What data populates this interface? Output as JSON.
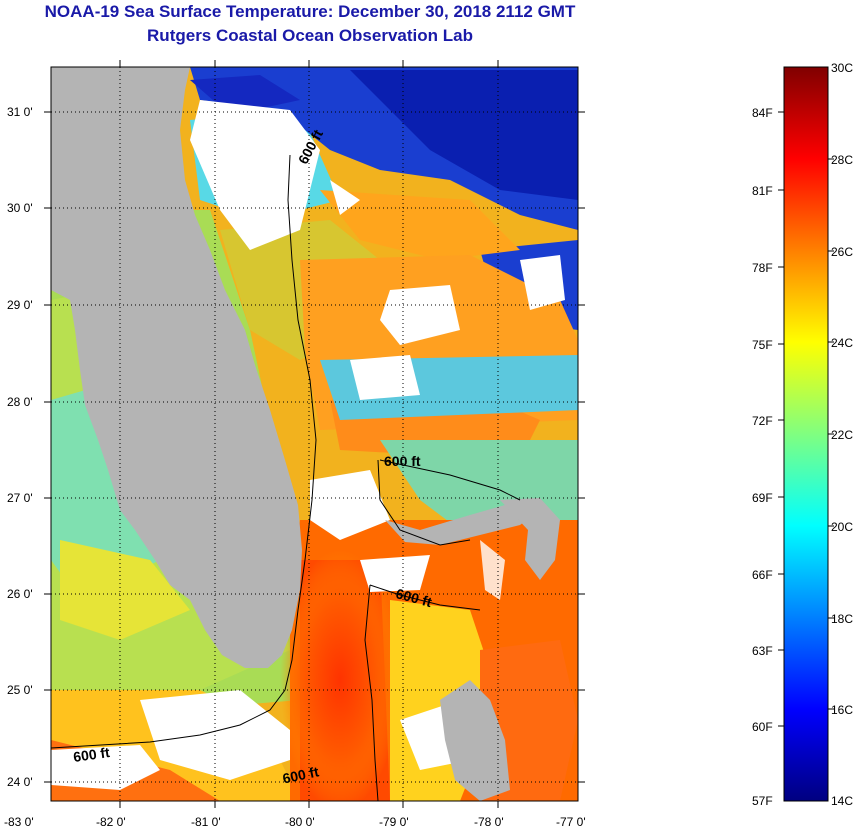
{
  "header": {
    "title": "NOAA-19 Sea Surface Temperature:  December 30, 2018 2112 GMT",
    "subtitle": "Rutgers Coastal Ocean Observation Lab"
  },
  "map": {
    "lat_ticks": [
      "31 0'",
      "30 0'",
      "29 0'",
      "28 0'",
      "27 0'",
      "26 0'",
      "25 0'",
      "24 0'"
    ],
    "lon_ticks": [
      "-83 0'",
      "-82 0'",
      "-81 0'",
      "-80 0'",
      "-79 0'",
      "-78 0'",
      "-77 0'"
    ],
    "isobath_labels": [
      "600 ft",
      "600 ft",
      "600 ft",
      "600 ft",
      "600 ft"
    ],
    "colors": {
      "land": "#b4b4b4",
      "cloud": "#ffffff"
    }
  },
  "colorbar": {
    "c_labels": [
      "30C",
      "28C",
      "26C",
      "24C",
      "22C",
      "20C",
      "18C",
      "16C",
      "14C"
    ],
    "f_labels": [
      "84F",
      "81F",
      "78F",
      "75F",
      "72F",
      "69F",
      "66F",
      "63F",
      "60F",
      "57F"
    ],
    "colors": [
      "#000080",
      "#0000ff",
      "#0080ff",
      "#00ffff",
      "#80ff80",
      "#ffff00",
      "#ff8000",
      "#ff0000",
      "#800000"
    ]
  }
}
